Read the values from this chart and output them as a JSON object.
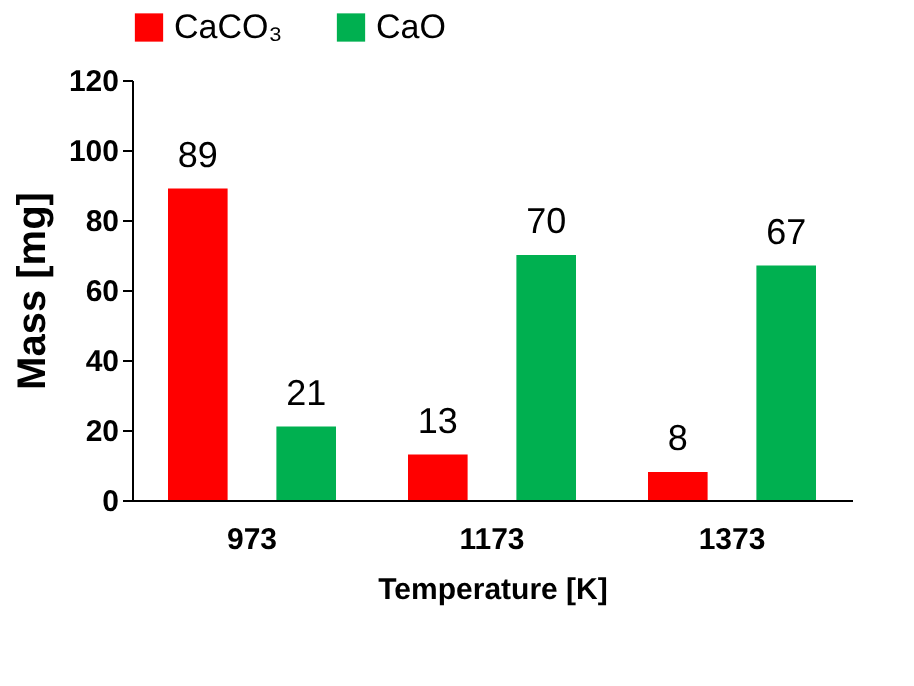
{
  "chart_data": {
    "type": "bar",
    "xlabel": "Temperature [K]",
    "ylabel": "Mass [mg]",
    "categories": [
      "973",
      "1173",
      "1373"
    ],
    "series": [
      {
        "name": "CaCO₃",
        "color": "#ff0000",
        "values": [
          89,
          13,
          8
        ]
      },
      {
        "name": "CaO",
        "color": "#00b050",
        "values": [
          21,
          70,
          67
        ]
      }
    ],
    "ylim": [
      0,
      120
    ],
    "yticks": [
      0,
      20,
      40,
      60,
      80,
      100,
      120
    ],
    "grid": false,
    "legend": "top",
    "data_labels": true
  }
}
